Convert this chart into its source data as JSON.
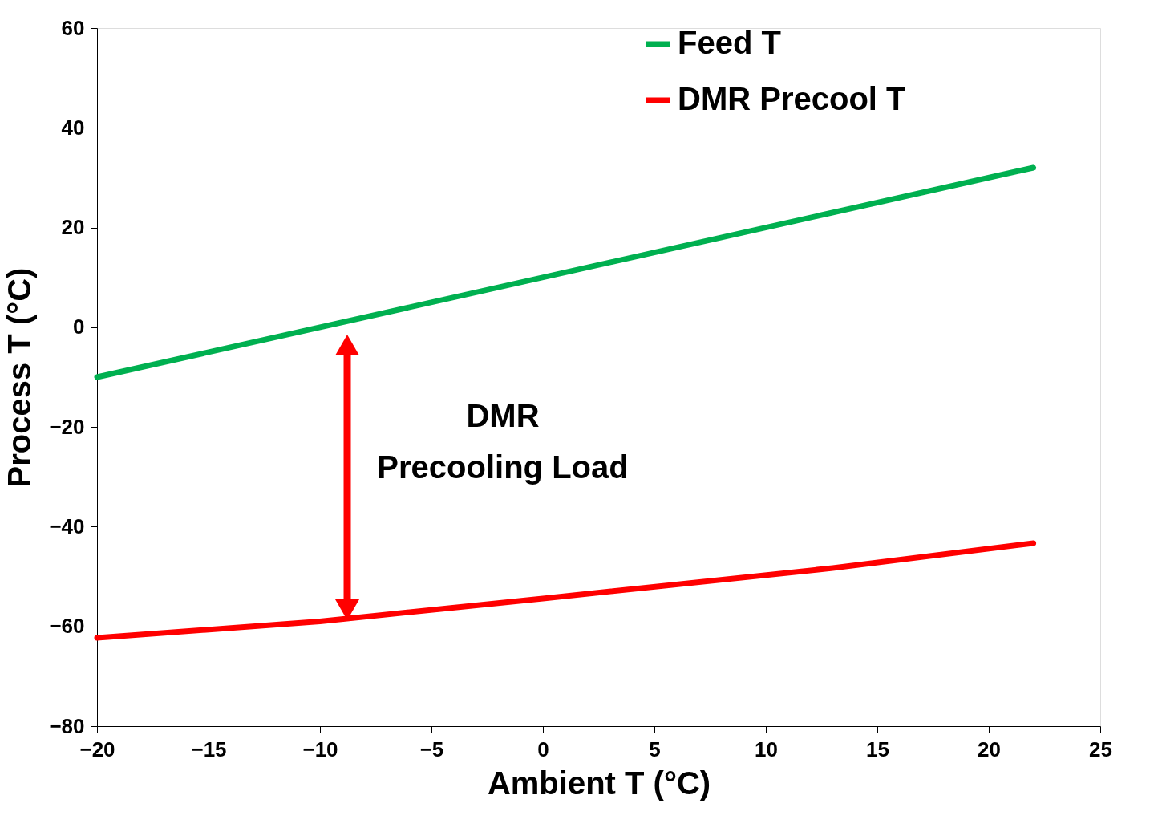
{
  "chart_data": {
    "type": "line",
    "xlabel": "Ambient T (°C)",
    "ylabel": "Process T (°C)",
    "series": [
      {
        "name": "Feed T",
        "color": "#00b050",
        "x": [
          -20,
          22
        ],
        "values": [
          -10,
          32
        ]
      },
      {
        "name": "DMR Precool T",
        "color": "#ff0000",
        "x": [
          -20,
          -10,
          0,
          13,
          22
        ],
        "values": [
          -62.3,
          -59,
          -54.4,
          -48.3,
          -43.3
        ]
      }
    ],
    "xlim": [
      -20,
      25
    ],
    "xticks": [
      -20,
      -15,
      -10,
      -5,
      0,
      5,
      10,
      15,
      20,
      25
    ],
    "ylim": [
      -80,
      60
    ],
    "yticks": [
      -80,
      -60,
      -40,
      -20,
      0,
      20,
      40,
      60
    ],
    "annotations": [
      "DMR\nPrecooling Load"
    ],
    "grid": false,
    "legend": "top right",
    "marker": "none",
    "line_style": "solid"
  }
}
